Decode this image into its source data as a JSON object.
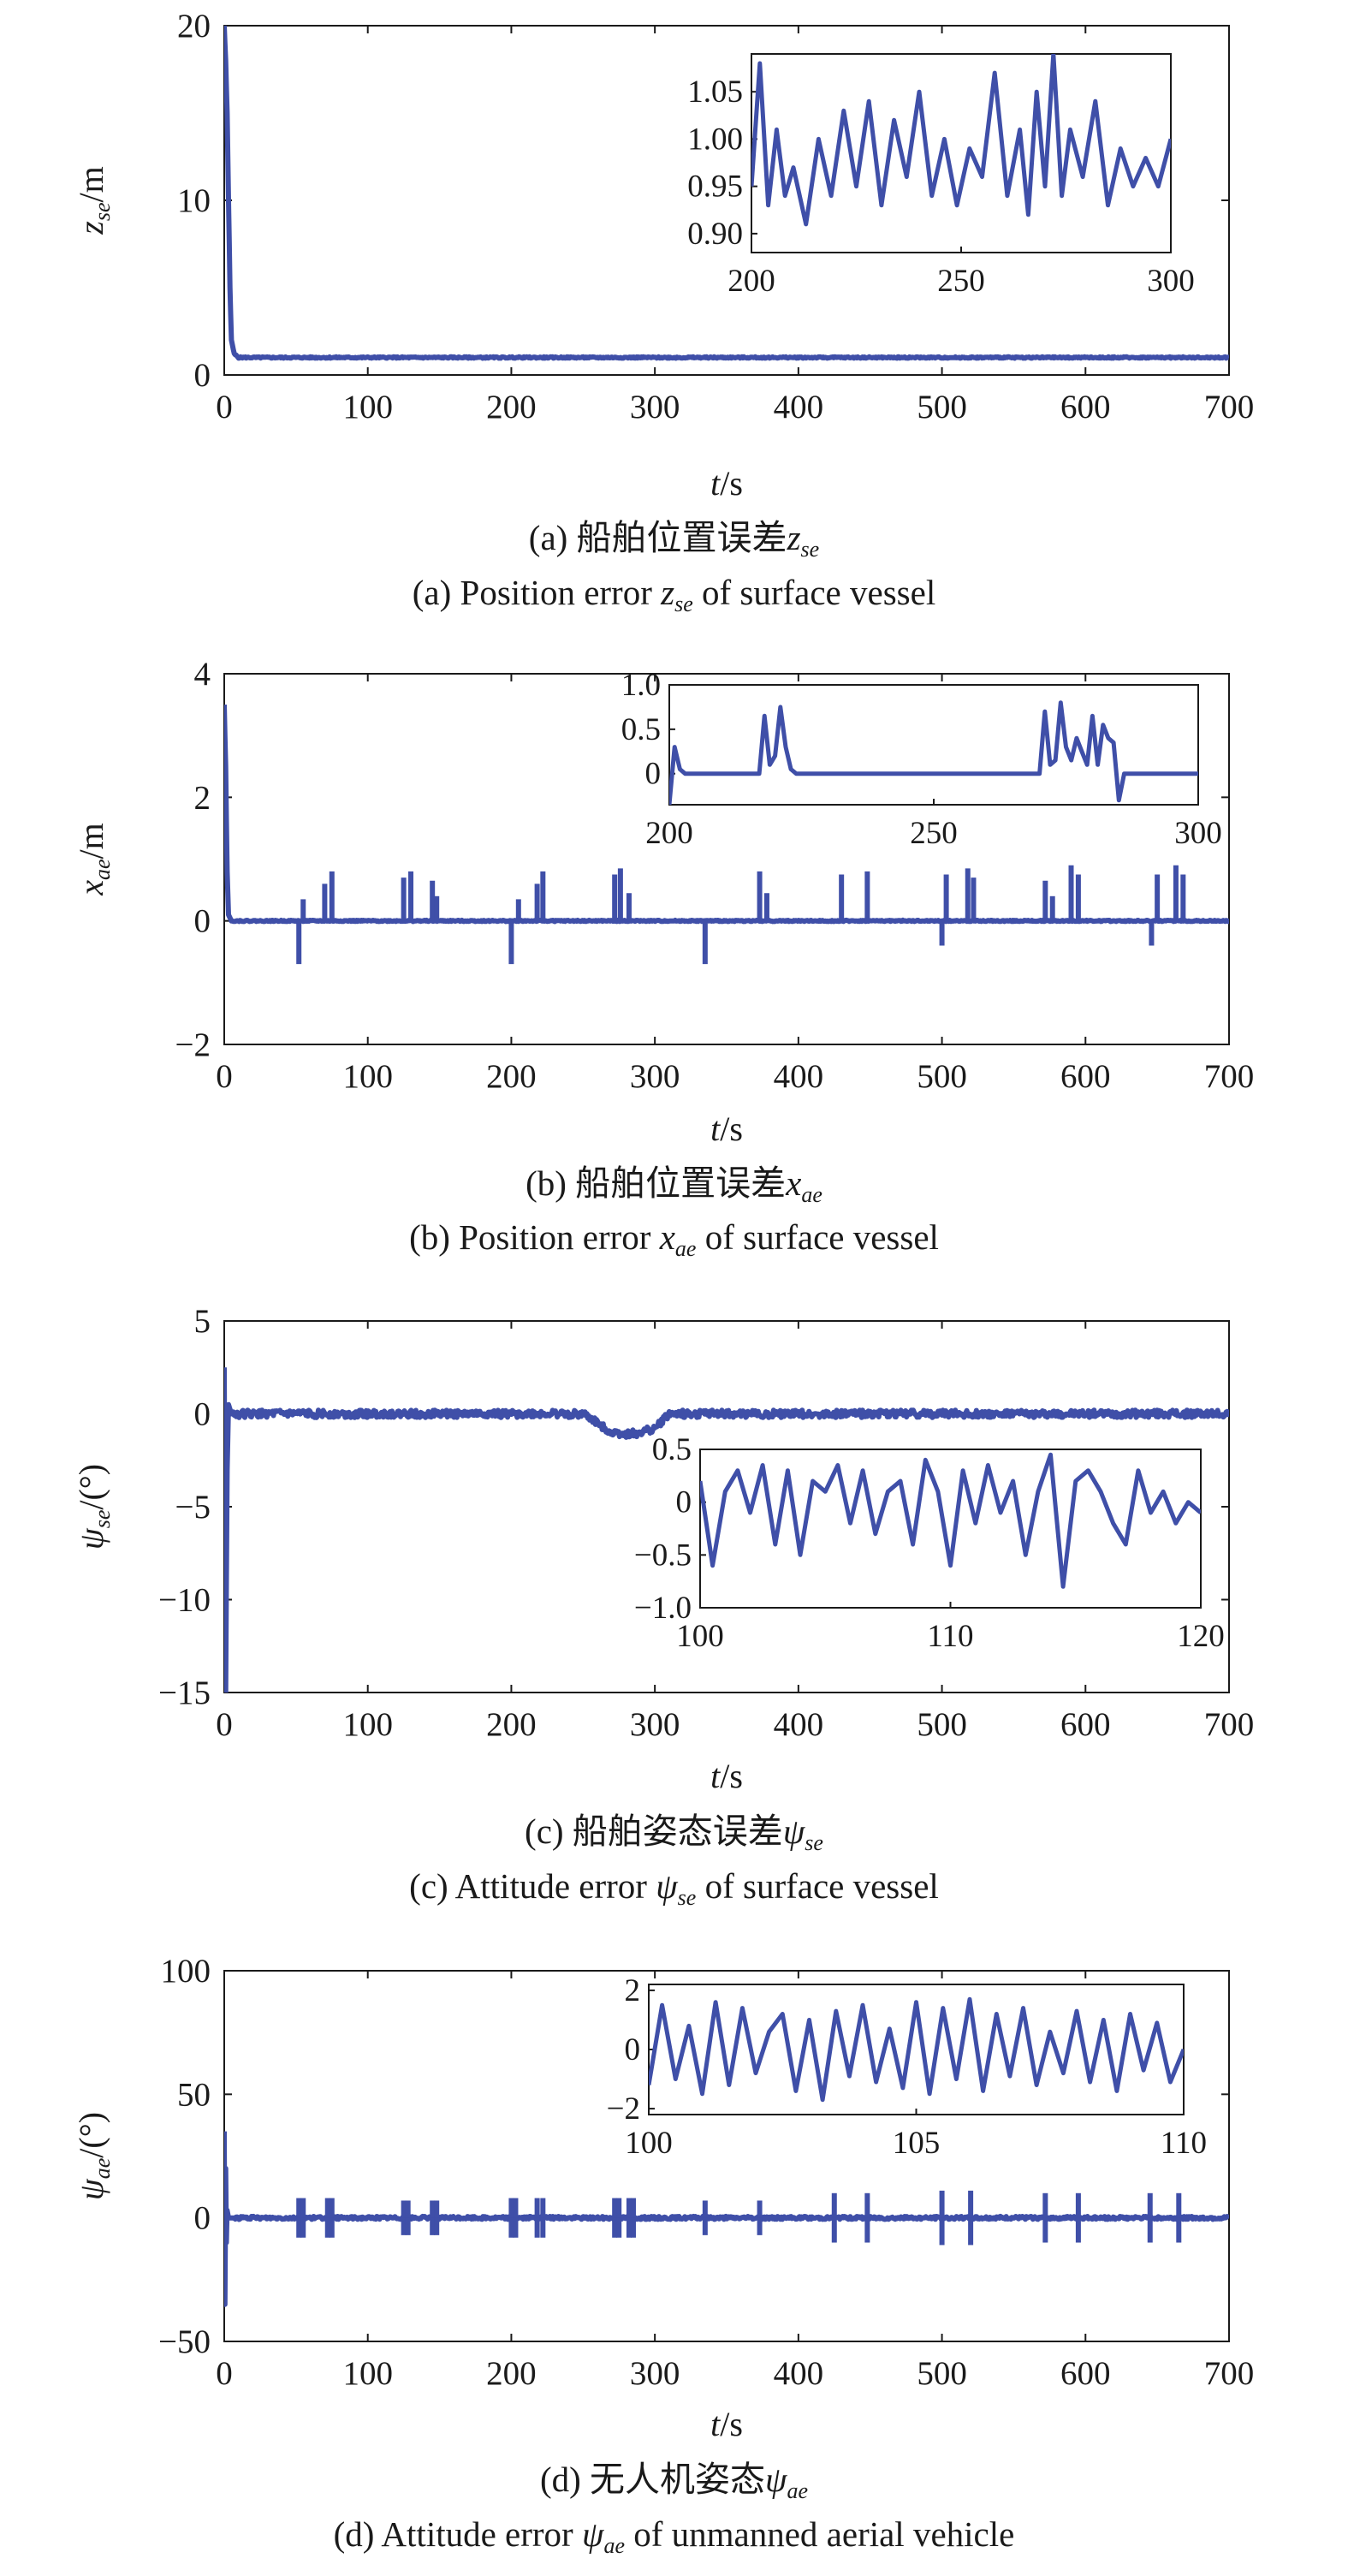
{
  "chart_data": [
    {
      "type": "line",
      "panel": "a",
      "xlabel_var": "t",
      "xlabel_unit": "/s",
      "ylabel_var": "z",
      "ylabel_sub": "se",
      "ylabel_unit": "/m",
      "xlim": [
        0,
        700
      ],
      "ylim": [
        0,
        20
      ],
      "xticks": [
        0,
        100,
        200,
        300,
        400,
        500,
        600,
        700
      ],
      "yticks": [
        0,
        10,
        20
      ],
      "caption_cn_prefix": "(a) 船舶位置误差",
      "caption_cn_var": "z",
      "caption_cn_sub": "se",
      "caption_en_prefix": "(a) Position error ",
      "caption_en_var": "z",
      "caption_en_sub": "se",
      "caption_en_suffix": " of surface vessel",
      "series": [
        {
          "values_desc": "",
          "x": [
            0,
            1,
            2,
            3,
            4,
            5,
            7,
            10,
            50,
            100,
            200,
            300,
            400,
            500,
            600,
            700
          ],
          "y": [
            20,
            18,
            15,
            10,
            5,
            2,
            1.2,
            1.0,
            1.0,
            1.0,
            1.0,
            1.0,
            1.0,
            1.0,
            1.0,
            1.0
          ]
        }
      ],
      "inset": {
        "xlim": [
          200,
          300
        ],
        "ylim": [
          0.88,
          1.09
        ],
        "xticks": [
          200,
          250,
          300
        ],
        "yticks": [
          0.9,
          0.95,
          1.0,
          1.05
        ],
        "ytick_labels": [
          "0.90",
          "0.95",
          "1.00",
          "1.05"
        ],
        "x": [
          200,
          202,
          204,
          206,
          208,
          210,
          213,
          216,
          219,
          222,
          225,
          228,
          231,
          234,
          237,
          240,
          243,
          246,
          249,
          252,
          255,
          258,
          261,
          264,
          266,
          268,
          270,
          272,
          274,
          276,
          279,
          282,
          285,
          288,
          291,
          294,
          297,
          300
        ],
        "y": [
          0.95,
          1.08,
          0.93,
          1.01,
          0.94,
          0.97,
          0.91,
          1.0,
          0.94,
          1.03,
          0.95,
          1.04,
          0.93,
          1.02,
          0.96,
          1.05,
          0.94,
          1.0,
          0.93,
          0.99,
          0.96,
          1.07,
          0.94,
          1.01,
          0.92,
          1.05,
          0.95,
          1.09,
          0.94,
          1.01,
          0.96,
          1.04,
          0.93,
          0.99,
          0.95,
          0.98,
          0.95,
          1.0
        ]
      }
    },
    {
      "type": "line",
      "panel": "b",
      "xlabel_var": "t",
      "xlabel_unit": "/s",
      "ylabel_var": "x",
      "ylabel_sub": "ae",
      "ylabel_unit": "/m",
      "xlim": [
        0,
        700
      ],
      "ylim": [
        -2,
        4
      ],
      "xticks": [
        0,
        100,
        200,
        300,
        400,
        500,
        600,
        700
      ],
      "yticks": [
        -2,
        0,
        2,
        4
      ],
      "caption_cn_prefix": "(b) 船舶位置误差",
      "caption_cn_var": "x",
      "caption_cn_sub": "ae",
      "caption_en_prefix": "(b) Position error ",
      "caption_en_var": "x",
      "caption_en_sub": "ae",
      "caption_en_suffix": " of surface vessel",
      "series": [
        {
          "x": [
            0,
            1,
            2,
            3,
            5,
            700
          ],
          "y": [
            3.5,
            2.5,
            0.8,
            0.1,
            0,
            0
          ],
          "spikes": [
            52,
            55,
            70,
            75,
            125,
            130,
            145,
            148,
            200,
            205,
            218,
            222,
            272,
            276,
            282,
            335,
            373,
            378,
            430,
            448,
            500,
            503,
            518,
            522,
            572,
            577,
            590,
            595,
            646,
            650,
            663,
            668
          ],
          "spike_heights": [
            -0.7,
            0.35,
            0.6,
            0.8,
            0.7,
            0.8,
            0.65,
            0.4,
            -0.7,
            0.35,
            0.6,
            0.8,
            0.75,
            0.85,
            0.45,
            -0.7,
            0.8,
            0.45,
            0.75,
            0.8,
            -0.4,
            0.75,
            0.85,
            0.7,
            0.65,
            0.4,
            0.9,
            0.75,
            -0.4,
            0.75,
            0.9,
            0.75
          ]
        }
      ],
      "inset": {
        "xlim": [
          200,
          300
        ],
        "ylim": [
          -0.35,
          1.0
        ],
        "xticks": [
          200,
          250,
          300
        ],
        "yticks": [
          0,
          0.5,
          1.0
        ],
        "ytick_labels": [
          "0",
          "0.5",
          "1.0"
        ],
        "x": [
          200,
          201,
          202,
          203,
          217,
          218,
          219,
          220,
          221,
          222,
          223,
          224,
          225,
          270,
          271,
          272,
          273,
          274,
          275,
          276,
          277,
          278,
          279,
          280,
          281,
          282,
          283,
          284,
          285,
          286,
          300
        ],
        "y": [
          -0.35,
          0.3,
          0.05,
          0,
          0,
          0.65,
          0.1,
          0.2,
          0.75,
          0.3,
          0.05,
          0,
          0,
          0,
          0.7,
          0.1,
          0.15,
          0.8,
          0.3,
          0.15,
          0.4,
          0.25,
          0.1,
          0.65,
          0.1,
          0.55,
          0.4,
          0.35,
          -0.3,
          0,
          0
        ]
      }
    },
    {
      "type": "line",
      "panel": "c",
      "xlabel_var": "t",
      "xlabel_unit": "/s",
      "ylabel_var": "ψ",
      "ylabel_sub": "se",
      "ylabel_unit": "/(°)",
      "xlim": [
        0,
        700
      ],
      "ylim": [
        -15,
        5
      ],
      "xticks": [
        0,
        100,
        200,
        300,
        400,
        500,
        600,
        700
      ],
      "yticks": [
        -15,
        -10,
        -5,
        0,
        5
      ],
      "caption_cn_prefix": "(c) 船舶姿态误差",
      "caption_cn_var": "ψ",
      "caption_cn_sub": "se",
      "caption_en_prefix": "(c) Attitude error ",
      "caption_en_var": "ψ",
      "caption_en_sub": "se",
      "caption_en_suffix": " of surface vessel",
      "series": [
        {
          "x": [
            0,
            1,
            2,
            3,
            5,
            250,
            260,
            270,
            280,
            290,
            300,
            310,
            700
          ],
          "y": [
            2.5,
            -15,
            -3,
            0.5,
            0,
            0,
            -0.5,
            -1.0,
            -1.1,
            -1.0,
            -0.8,
            0,
            0
          ]
        }
      ],
      "inset": {
        "xlim": [
          100,
          120
        ],
        "ylim": [
          -1.0,
          0.5
        ],
        "xticks": [
          100,
          110,
          120
        ],
        "yticks": [
          -1.0,
          -0.5,
          0,
          0.5
        ],
        "ytick_labels": [
          "−1.0",
          "−0.5",
          "0",
          "0.5"
        ],
        "x": [
          100,
          100.5,
          101,
          101.5,
          102,
          102.5,
          103,
          103.5,
          104,
          104.5,
          105,
          105.5,
          106,
          106.5,
          107,
          107.5,
          108,
          108.5,
          109,
          109.5,
          110,
          110.5,
          111,
          111.5,
          112,
          112.5,
          113,
          113.5,
          114,
          114.5,
          115,
          115.5,
          116,
          116.5,
          117,
          117.5,
          118,
          118.5,
          119,
          119.5,
          120
        ],
        "y": [
          0.2,
          -0.6,
          0.1,
          0.3,
          -0.1,
          0.35,
          -0.4,
          0.3,
          -0.5,
          0.2,
          0.1,
          0.35,
          -0.2,
          0.3,
          -0.3,
          0.1,
          0.2,
          -0.4,
          0.4,
          0.1,
          -0.6,
          0.3,
          -0.2,
          0.35,
          -0.1,
          0.2,
          -0.5,
          0.1,
          0.45,
          -0.8,
          0.2,
          0.3,
          0.1,
          -0.2,
          -0.4,
          0.3,
          -0.1,
          0.1,
          -0.2,
          0.0,
          -0.1
        ]
      }
    },
    {
      "type": "line",
      "panel": "d",
      "xlabel_var": "t",
      "xlabel_unit": "/s",
      "ylabel_var": "ψ",
      "ylabel_sub": "ae",
      "ylabel_unit": "/(°)",
      "xlim": [
        0,
        700
      ],
      "ylim": [
        -50,
        100
      ],
      "xticks": [
        0,
        100,
        200,
        300,
        400,
        500,
        600,
        700
      ],
      "yticks": [
        -50,
        0,
        50,
        100
      ],
      "caption_cn_prefix": "(d) 无人机姿态",
      "caption_cn_var": "ψ",
      "caption_cn_sub": "ae",
      "caption_en_prefix": "(d) Attitude error ",
      "caption_en_var": "ψ",
      "caption_en_sub": "ae",
      "caption_en_suffix": " of unmanned aerial vehicle",
      "series": [
        {
          "x": [
            0,
            0.5,
            1,
            1.5,
            2,
            3,
            700
          ],
          "y": [
            35,
            -35,
            20,
            -10,
            3,
            0,
            0
          ],
          "spikes": [
            52,
            55,
            72,
            75,
            125,
            128,
            145,
            148,
            200,
            203,
            218,
            222,
            272,
            275,
            282,
            285,
            335,
            373,
            425,
            448,
            500,
            520,
            572,
            595,
            645,
            665
          ],
          "spike_heights": [
            8,
            8,
            8,
            8,
            7,
            7,
            7,
            7,
            8,
            8,
            8,
            8,
            8,
            8,
            8,
            8,
            7,
            7,
            10,
            10,
            11,
            11,
            10,
            10,
            10,
            10
          ]
        }
      ],
      "inset": {
        "xlim": [
          100,
          110
        ],
        "ylim": [
          -2.2,
          2.2
        ],
        "xticks": [
          100,
          105,
          110
        ],
        "yticks": [
          -2,
          0,
          2
        ],
        "ytick_labels": [
          "−2",
          "0",
          "2"
        ],
        "x": [
          100,
          100.25,
          100.5,
          100.75,
          101,
          101.25,
          101.5,
          101.75,
          102,
          102.25,
          102.5,
          102.75,
          103,
          103.25,
          103.5,
          103.75,
          104,
          104.25,
          104.5,
          104.75,
          105,
          105.25,
          105.5,
          105.75,
          106,
          106.25,
          106.5,
          106.75,
          107,
          107.25,
          107.5,
          107.75,
          108,
          108.25,
          108.5,
          108.75,
          109,
          109.25,
          109.5,
          109.75,
          110
        ],
        "y": [
          -1.2,
          1.5,
          -1.0,
          0.8,
          -1.5,
          1.6,
          -1.2,
          1.4,
          -0.8,
          0.6,
          1.2,
          -1.4,
          1.0,
          -1.7,
          1.3,
          -0.9,
          1.5,
          -1.1,
          0.7,
          -1.3,
          1.6,
          -1.5,
          1.4,
          -1.0,
          1.7,
          -1.4,
          1.2,
          -0.9,
          1.4,
          -1.2,
          0.6,
          -0.8,
          1.3,
          -1.1,
          1.0,
          -1.4,
          1.2,
          -0.7,
          0.9,
          -1.1,
          0.0
        ]
      }
    }
  ],
  "series_color": "#3f4fa8"
}
